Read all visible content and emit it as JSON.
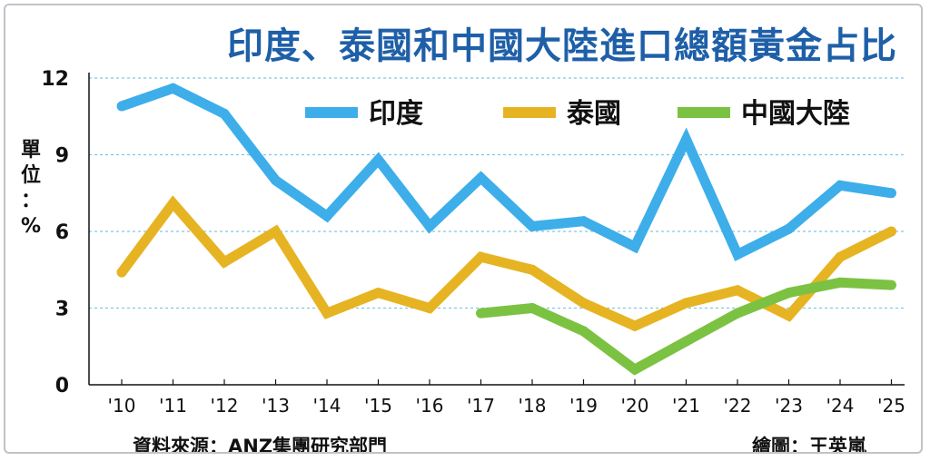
{
  "title": "印度、泰國和中國大陸進口總額黃金占比",
  "unit": {
    "line1": "單",
    "line2": "位",
    "line3": "：",
    "line4": "%"
  },
  "source": "資料來源：ANZ集團研究部門",
  "credit": "繪圖：王英嵐",
  "chart_data": {
    "type": "line",
    "x": [
      "'10",
      "'11",
      "'12",
      "'13",
      "'14",
      "'15",
      "'16",
      "'17",
      "'18",
      "'19",
      "'20",
      "'21",
      "'22",
      "'23",
      "'24",
      "'25"
    ],
    "ylim": [
      0,
      12
    ],
    "yticks": [
      "0",
      "3",
      "6",
      "9",
      "12"
    ],
    "grid": true,
    "legend_position": "top",
    "series": [
      {
        "name": "印度",
        "color": "#3daee9",
        "values": [
          10.9,
          11.6,
          10.6,
          8.0,
          6.6,
          8.8,
          6.2,
          8.1,
          6.2,
          6.4,
          5.4,
          9.6,
          5.1,
          6.1,
          7.8,
          7.5
        ]
      },
      {
        "name": "泰國",
        "color": "#e6b422",
        "values": [
          4.4,
          7.1,
          4.8,
          6.0,
          2.8,
          3.6,
          3.0,
          5.0,
          4.5,
          3.2,
          2.3,
          3.2,
          3.7,
          2.7,
          5.0,
          6.0
        ]
      },
      {
        "name": "中國大陸",
        "color": "#7cc242",
        "values": [
          null,
          null,
          null,
          null,
          null,
          null,
          null,
          2.8,
          3.0,
          2.1,
          0.6,
          1.7,
          2.8,
          3.6,
          4.0,
          3.9
        ]
      }
    ]
  }
}
